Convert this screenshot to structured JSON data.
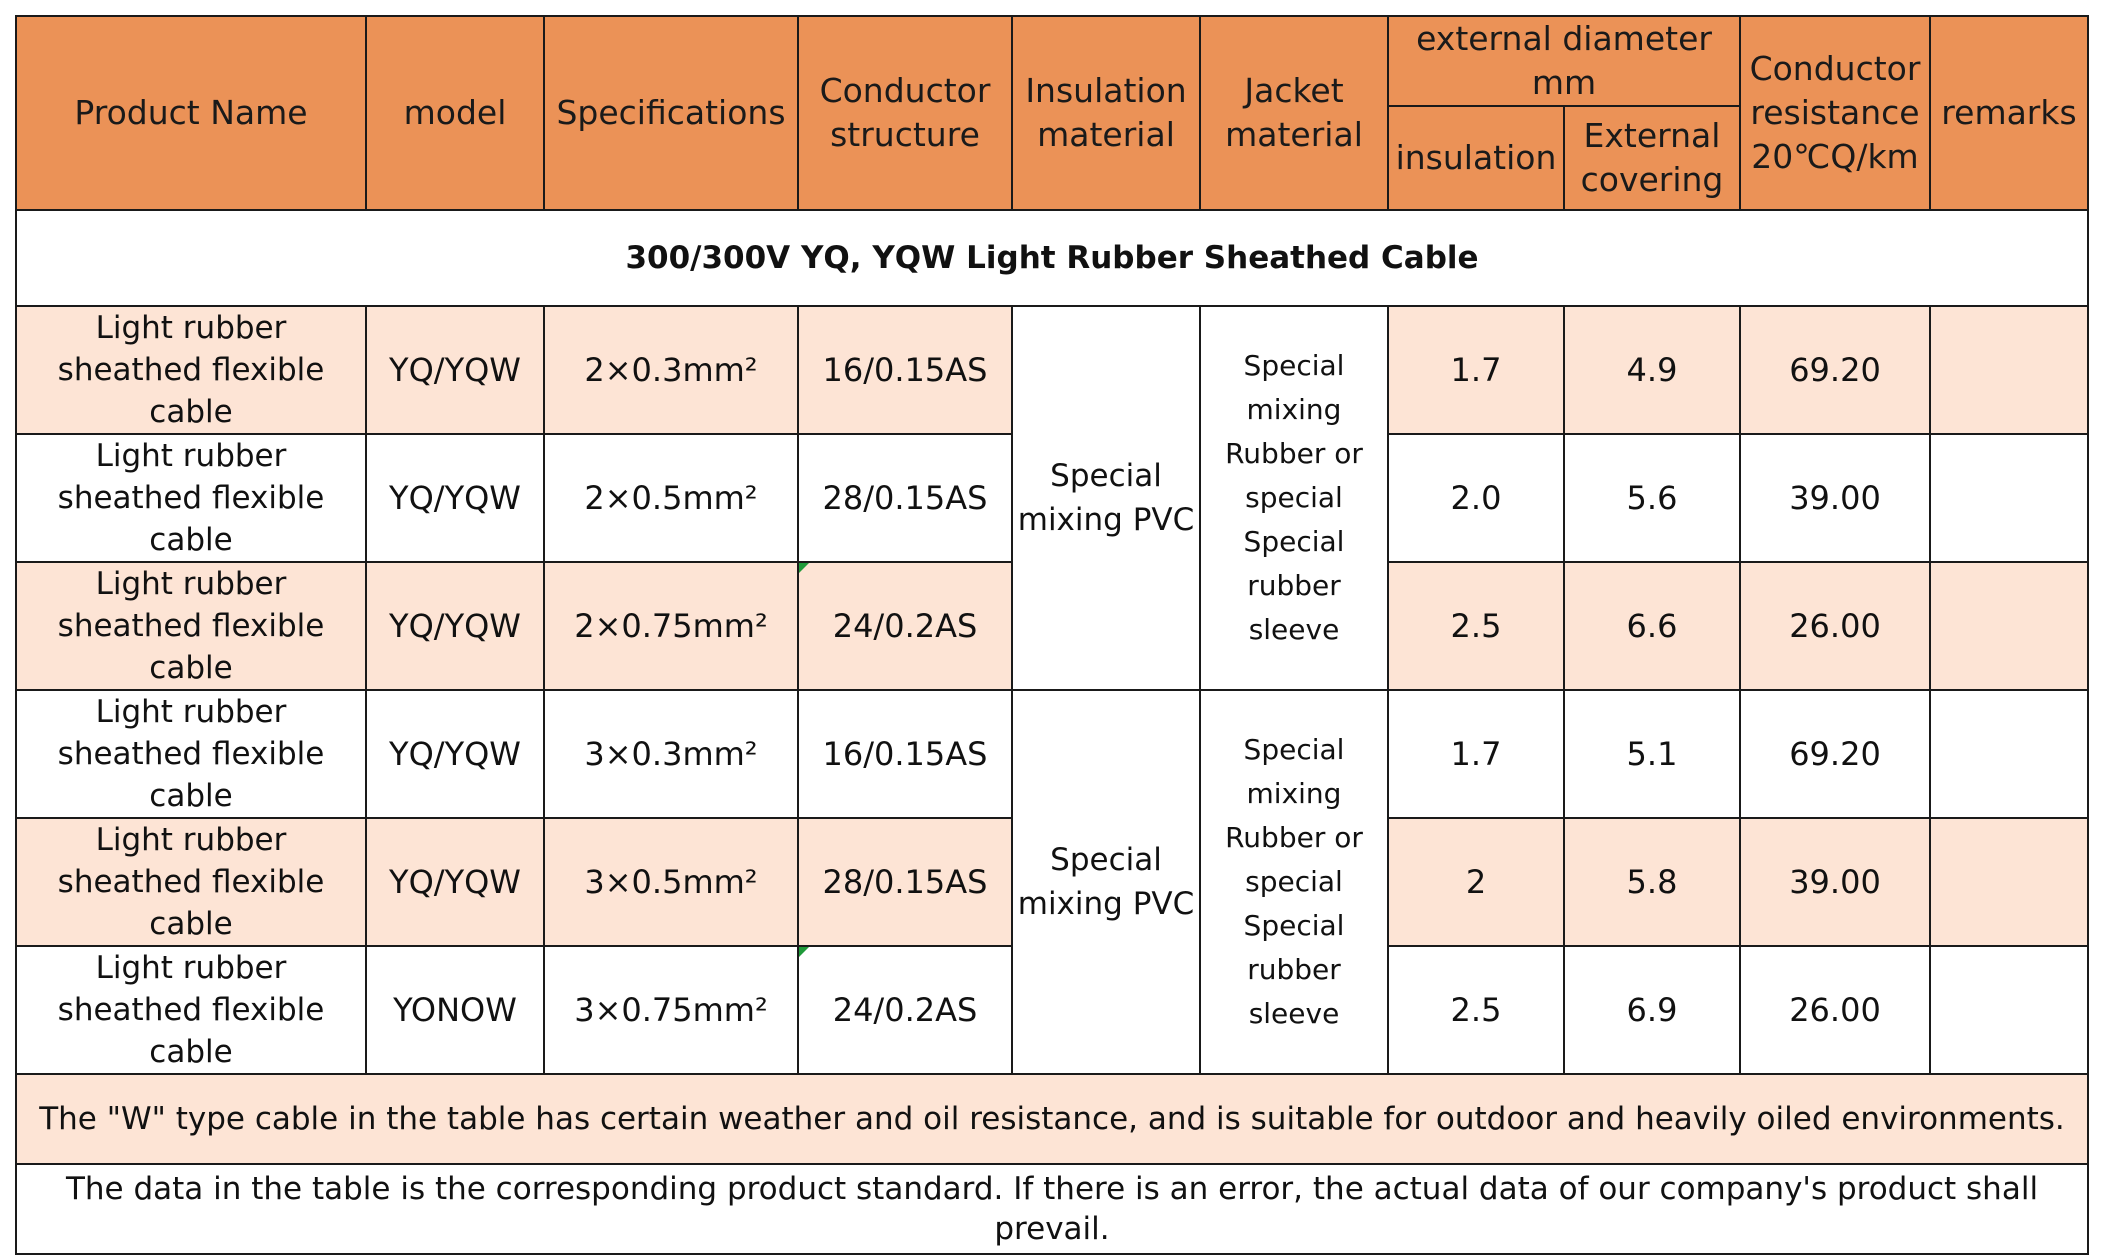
{
  "colors": {
    "header_bg": "#eb9257",
    "row_shade": "#fde4d5",
    "border": "#1a1a1a",
    "mark": "#1f9a3a"
  },
  "headers": {
    "product_name": "Product Name",
    "model": "model",
    "specifications": "Specifications",
    "conductor_structure": "Conductor structure",
    "insulation_material": "Insulation material",
    "jacket_material": "Jacket material",
    "external_diameter": "external diameter mm",
    "insulation": "insulation",
    "external_covering": "External covering",
    "conductor_resistance": "Conductor resistance 20℃Q/km",
    "remarks": "remarks"
  },
  "section_title": "300/300V YQ, YQW Light Rubber Sheathed Cable",
  "groups": [
    {
      "insulation_material": "Special mixing PVC",
      "jacket_material": "Special mixing Rubber or special Special rubber sleeve"
    },
    {
      "insulation_material": "Special mixing PVC",
      "jacket_material": "Special mixing Rubber or special Special rubber sleeve"
    }
  ],
  "rows": [
    {
      "name": "Light rubber sheathed flexible cable",
      "model": "YQ/YQW",
      "spec": "2×0.3mm²",
      "conductor": "16/0.15AS",
      "insulation": "1.7",
      "covering": "4.9",
      "resistance": "69.20",
      "remarks": ""
    },
    {
      "name": "Light rubber sheathed flexible cable",
      "model": "YQ/YQW",
      "spec": "2×0.5mm²",
      "conductor": "28/0.15AS",
      "insulation": "2.0",
      "covering": "5.6",
      "resistance": "39.00",
      "remarks": ""
    },
    {
      "name": "Light rubber sheathed flexible cable",
      "model": "YQ/YQW",
      "spec": "2×0.75mm²",
      "conductor": "24/0.2AS",
      "insulation": "2.5",
      "covering": "6.6",
      "resistance": "26.00",
      "remarks": ""
    },
    {
      "name": "Light rubber sheathed flexible cable",
      "model": "YQ/YQW",
      "spec": "3×0.3mm²",
      "conductor": "16/0.15AS",
      "insulation": "1.7",
      "covering": "5.1",
      "resistance": "69.20",
      "remarks": ""
    },
    {
      "name": "Light rubber sheathed flexible cable",
      "model": "YQ/YQW",
      "spec": "3×0.5mm²",
      "conductor": "28/0.15AS",
      "insulation": "2",
      "covering": "5.8",
      "resistance": "39.00",
      "remarks": ""
    },
    {
      "name": "Light rubber sheathed flexible cable",
      "model": "YONOW",
      "spec": "3×0.75mm²",
      "conductor": "24/0.2AS",
      "insulation": "2.5",
      "covering": "6.9",
      "resistance": "26.00",
      "remarks": ""
    }
  ],
  "notes": [
    "The \"W\" type cable in the table has certain weather and oil resistance, and is suitable for outdoor and heavily oiled environments.",
    "The data in the table is the corresponding product standard. If there is an error, the actual data of our company's product shall prevail."
  ]
}
